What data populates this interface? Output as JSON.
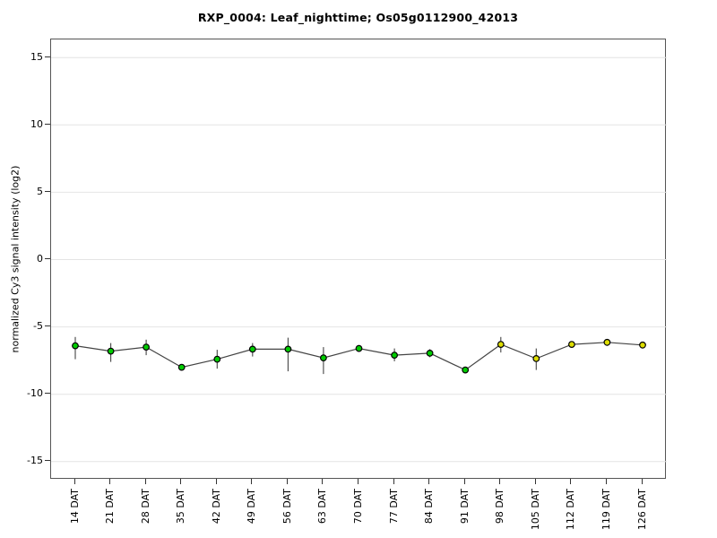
{
  "chart_data": {
    "type": "line",
    "title": "RXP_0004: Leaf_nighttime; Os05g0112900_42013",
    "xlabel": "",
    "ylabel": "normalized Cy3 signal intensity (log2)",
    "categories": [
      "14 DAT",
      "21 DAT",
      "28 DAT",
      "35 DAT",
      "42 DAT",
      "49 DAT",
      "56 DAT",
      "63 DAT",
      "70 DAT",
      "77 DAT",
      "84 DAT",
      "91 DAT",
      "98 DAT",
      "105 DAT",
      "112 DAT",
      "119 DAT",
      "126 DAT"
    ],
    "yticks": [
      15,
      10,
      5,
      0,
      -5,
      -10,
      -15
    ],
    "ylim": [
      -16.35,
      16.35
    ],
    "grid": true,
    "legend_position": "none",
    "series": [
      {
        "name": "Os05g0112900_42013",
        "values": [
          -6.4,
          -6.8,
          -6.5,
          -8.0,
          -7.4,
          -6.65,
          -6.65,
          -7.3,
          -6.6,
          -7.1,
          -6.95,
          -8.2,
          -6.3,
          -7.35,
          -6.3,
          -6.15,
          -6.35
        ],
        "err_low": [
          -7.4,
          -7.6,
          -7.1,
          -8.2,
          -8.1,
          -7.2,
          -8.3,
          -8.5,
          -6.85,
          -7.55,
          -7.25,
          -8.45,
          -6.9,
          -8.2,
          -6.5,
          -6.4,
          -6.55
        ],
        "err_high": [
          -5.75,
          -6.2,
          -5.95,
          -7.8,
          -6.7,
          -6.2,
          -5.8,
          -6.5,
          -6.35,
          -6.6,
          -6.65,
          -7.95,
          -5.75,
          -6.6,
          -6.1,
          -5.9,
          -6.15
        ],
        "point_colors": [
          "#00CC00",
          "#00CC00",
          "#00CC00",
          "#00CC00",
          "#00CC00",
          "#00CC00",
          "#00CC00",
          "#00CC00",
          "#00CC00",
          "#00CC00",
          "#00CC00",
          "#00CC00",
          "#DDDD00",
          "#DDDD00",
          "#DDDD00",
          "#DDDD00",
          "#DDDD00"
        ]
      }
    ],
    "colors": {
      "line": "#444444",
      "error_bar": "#444444",
      "marker_edge": "#000000",
      "grid": "#E4E4E4",
      "frame": "#555555",
      "text": "#000000",
      "background": "#FFFFFF"
    }
  }
}
